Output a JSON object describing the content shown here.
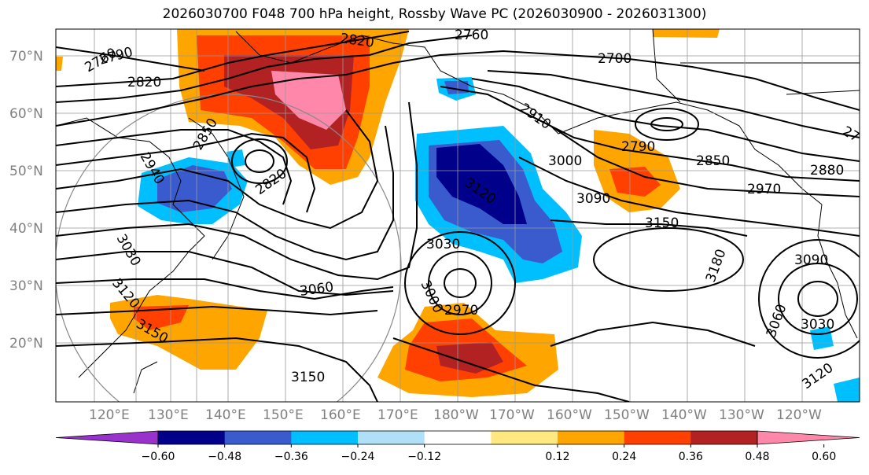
{
  "title": "2026030700 F048 700 hPa height, Rossby Wave PC (2026030900 - 2026031300)",
  "map": {
    "lat_labels": [
      "70°N",
      "60°N",
      "50°N",
      "40°N",
      "30°N",
      "20°N"
    ],
    "lon_labels": [
      "120°E",
      "130°E",
      "140°E",
      "150°E",
      "160°E",
      "170°E",
      "180°W",
      "170°W",
      "160°W",
      "150°W",
      "140°W",
      "130°W",
      "120°W"
    ],
    "contour_labels": [
      "2760",
      "2790",
      "2820",
      "2820",
      "2700",
      "2760",
      "2910",
      "2790",
      "2850",
      "2880",
      "2970",
      "3000",
      "3090",
      "3150",
      "3180",
      "3090",
      "3030",
      "3060",
      "3030",
      "3120",
      "3030",
      "3060",
      "3000",
      "2970",
      "3120",
      "3150",
      "3150",
      "2940",
      "2850",
      "2820",
      "3120",
      "27"
    ]
  },
  "colorbar": {
    "tick_labels": [
      "−0.60",
      "−0.48",
      "−0.36",
      "−0.24",
      "−0.12",
      "0.12",
      "0.24",
      "0.36",
      "0.48",
      "0.60"
    ],
    "colors": [
      "#9932cc",
      "#00008b",
      "#3a5bcd",
      "#00bfff",
      "#b0e0f8",
      "#ffffff",
      "#ffe880",
      "#ffa500",
      "#ff4000",
      "#b22222",
      "#ff88aa"
    ]
  }
}
